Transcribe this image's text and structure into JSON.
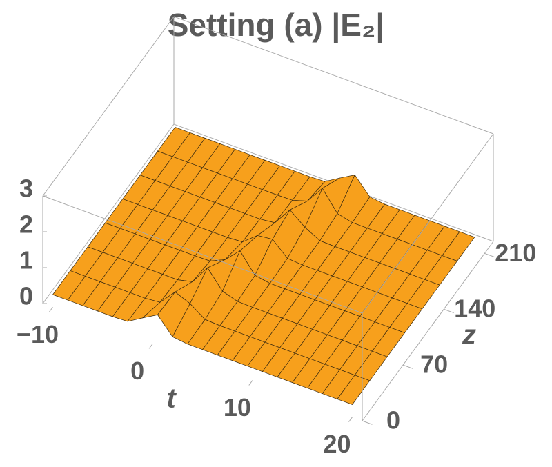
{
  "chart_data": {
    "type": "surface",
    "title": "Setting (a) |E₂|",
    "xlabel": "t",
    "ylabel": "z",
    "x": [
      -10,
      -8.5,
      -7,
      -5.5,
      -4,
      -2.5,
      -1,
      0.5,
      2,
      3.5,
      5,
      6.5,
      8,
      9.5,
      11,
      12.5,
      14,
      15.5,
      17,
      18.5,
      20
    ],
    "y": [
      0,
      30,
      60,
      90,
      120,
      150,
      180,
      210
    ],
    "values": [
      [
        0.35,
        0.35,
        0.35,
        0.35,
        0.35,
        0.37,
        0.62,
        0.86,
        0.4,
        0.35,
        0.35,
        0.35,
        0.35,
        0.35,
        0.35,
        0.35,
        0.35,
        0.35,
        0.35,
        0.35,
        0.35
      ],
      [
        0.35,
        0.35,
        0.35,
        0.35,
        0.35,
        0.35,
        0.39,
        0.83,
        0.66,
        0.37,
        0.35,
        0.35,
        0.35,
        0.35,
        0.35,
        0.35,
        0.35,
        0.35,
        0.35,
        0.35,
        0.35
      ],
      [
        0.35,
        0.35,
        0.35,
        0.35,
        0.35,
        0.35,
        0.35,
        0.45,
        0.99,
        0.49,
        0.36,
        0.35,
        0.35,
        0.35,
        0.35,
        0.35,
        0.35,
        0.35,
        0.35,
        0.35,
        0.35
      ],
      [
        0.35,
        0.35,
        0.35,
        0.35,
        0.35,
        0.35,
        0.35,
        0.36,
        0.55,
        0.95,
        0.42,
        0.35,
        0.35,
        0.35,
        0.35,
        0.35,
        0.35,
        0.35,
        0.35,
        0.35,
        0.35
      ],
      [
        0.35,
        0.35,
        0.35,
        0.35,
        0.35,
        0.35,
        0.35,
        0.35,
        0.38,
        0.71,
        0.76,
        0.38,
        0.35,
        0.35,
        0.35,
        0.35,
        0.35,
        0.35,
        0.35,
        0.35,
        0.35
      ],
      [
        0.35,
        0.35,
        0.35,
        0.35,
        0.35,
        0.35,
        0.35,
        0.35,
        0.35,
        0.4,
        0.91,
        0.58,
        0.36,
        0.35,
        0.35,
        0.35,
        0.35,
        0.35,
        0.35,
        0.35,
        0.35
      ],
      [
        0.35,
        0.35,
        0.35,
        0.35,
        0.35,
        0.35,
        0.35,
        0.35,
        0.35,
        0.36,
        0.49,
        1.0,
        0.45,
        0.35,
        0.35,
        0.35,
        0.35,
        0.35,
        0.35,
        0.35,
        0.35
      ],
      [
        0.35,
        0.35,
        0.35,
        0.35,
        0.35,
        0.35,
        0.35,
        0.35,
        0.35,
        0.35,
        0.37,
        0.62,
        0.86,
        0.4,
        0.35,
        0.35,
        0.35,
        0.35,
        0.35,
        0.35,
        0.35
      ]
    ],
    "xlim": [
      -11,
      21
    ],
    "ylim": [
      0,
      225
    ],
    "zlim": [
      0,
      3
    ],
    "xticks": [
      {
        "value": -10,
        "label": "−10"
      },
      0,
      10,
      20
    ],
    "yticks": [
      0,
      70,
      140,
      210
    ],
    "zticks": [
      0,
      1,
      2,
      3
    ],
    "color_low": "#f7a01c",
    "color_high": "#ffe23a"
  }
}
